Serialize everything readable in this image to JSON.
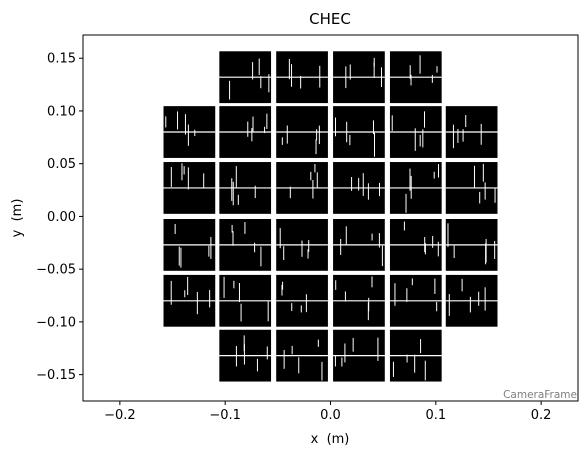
{
  "chart_data": {
    "type": "scatter",
    "title": "CHEC",
    "xlabel": "x  (m)",
    "ylabel": "y  (m)",
    "annotation": "CameraFrame",
    "xlim": [
      -0.235,
      0.235
    ],
    "ylim": [
      -0.175,
      0.172
    ],
    "xticks": [
      -0.2,
      -0.1,
      0.0,
      0.1,
      0.2
    ],
    "xtick_labels": [
      "−0.2",
      "−0.1",
      "0.0",
      "0.1",
      "0.2"
    ],
    "yticks": [
      -0.15,
      -0.1,
      -0.05,
      0.0,
      0.05,
      0.1,
      0.15
    ],
    "ytick_labels": [
      "−0.15",
      "−0.10",
      "−0.05",
      "0.00",
      "0.05",
      "0.10",
      "0.15"
    ],
    "grid": false,
    "pixel_color": "#000000",
    "module_size_m": 0.051,
    "module_centers": [
      [
        -0.081,
        0.132
      ],
      [
        -0.027,
        0.132
      ],
      [
        0.027,
        0.132
      ],
      [
        0.081,
        0.132
      ],
      [
        -0.134,
        0.08
      ],
      [
        -0.081,
        0.08
      ],
      [
        -0.027,
        0.08
      ],
      [
        0.027,
        0.08
      ],
      [
        0.081,
        0.08
      ],
      [
        0.134,
        0.08
      ],
      [
        -0.134,
        0.027
      ],
      [
        -0.081,
        0.027
      ],
      [
        -0.027,
        0.027
      ],
      [
        0.027,
        0.027
      ],
      [
        0.081,
        0.027
      ],
      [
        0.134,
        0.027
      ],
      [
        -0.134,
        -0.027
      ],
      [
        -0.081,
        -0.027
      ],
      [
        -0.027,
        -0.027
      ],
      [
        0.027,
        -0.027
      ],
      [
        0.081,
        -0.027
      ],
      [
        0.134,
        -0.027
      ],
      [
        -0.134,
        -0.08
      ],
      [
        -0.081,
        -0.08
      ],
      [
        -0.027,
        -0.08
      ],
      [
        0.027,
        -0.08
      ],
      [
        0.081,
        -0.08
      ],
      [
        0.134,
        -0.08
      ],
      [
        -0.081,
        -0.132
      ],
      [
        -0.027,
        -0.132
      ],
      [
        0.027,
        -0.132
      ],
      [
        0.081,
        -0.132
      ]
    ]
  }
}
